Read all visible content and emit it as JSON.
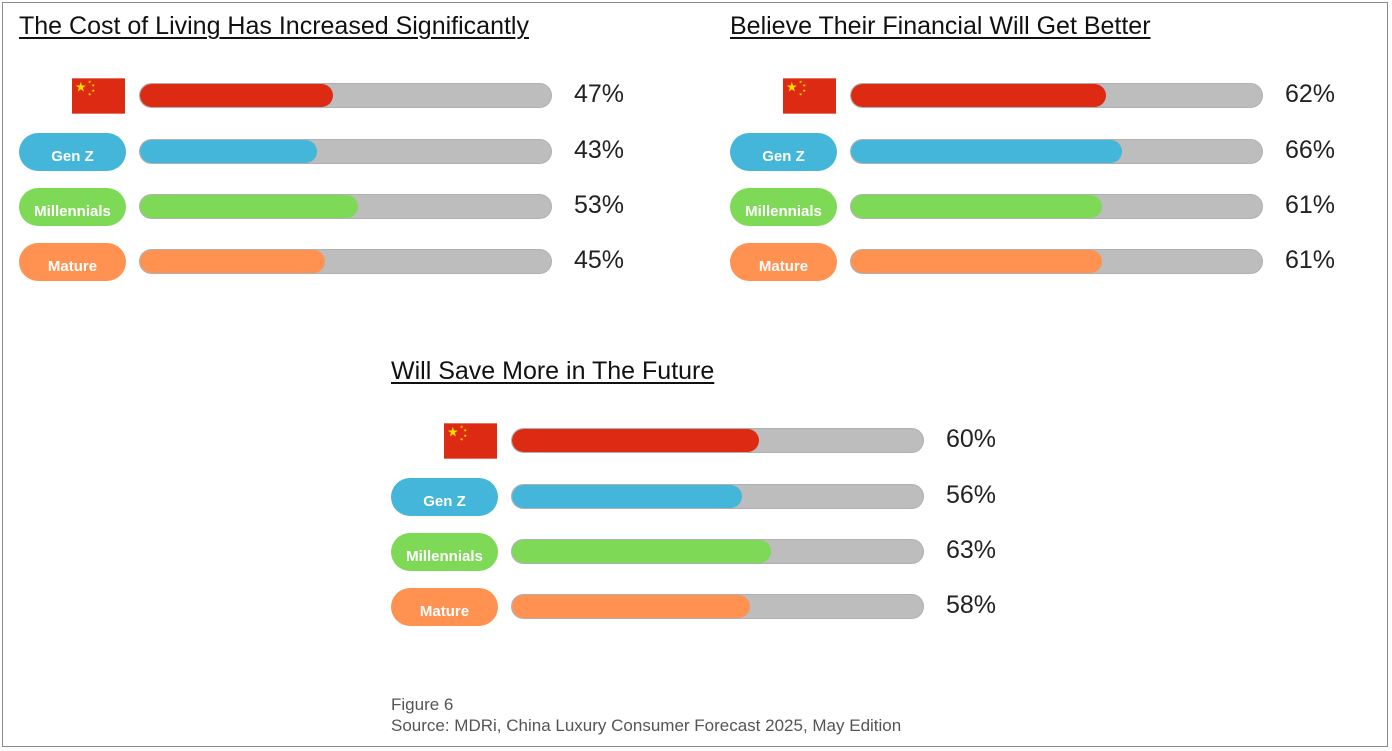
{
  "colors": {
    "china": "#dd2a13",
    "gen_z": "#43b6d9",
    "millennials": "#7ed957",
    "mature": "#ff9151",
    "track": "#bdbdbd",
    "flag_star": "#ffde00"
  },
  "chart_data": [
    {
      "type": "bar",
      "title": "The Cost of Living Has Increased Significantly",
      "categories": [
        "China",
        "Gen Z",
        "Millennials",
        "Mature"
      ],
      "category_labels": [
        "",
        "Gen Z",
        "Millennials",
        "Mature"
      ],
      "values": [
        47,
        43,
        53,
        45
      ],
      "value_labels": [
        "47%",
        "43%",
        "53%",
        "45%"
      ],
      "xlim": [
        0,
        100
      ]
    },
    {
      "type": "bar",
      "title": "Believe Their Financial Will Get Better",
      "categories": [
        "China",
        "Gen Z",
        "Millennials",
        "Mature"
      ],
      "category_labels": [
        "",
        "Gen Z",
        "Millennials",
        "Mature"
      ],
      "values": [
        62,
        66,
        61,
        61
      ],
      "value_labels": [
        "62%",
        "66%",
        "61%",
        "61%"
      ],
      "xlim": [
        0,
        100
      ]
    },
    {
      "type": "bar",
      "title": "Will Save More in The Future",
      "categories": [
        "China",
        "Gen Z",
        "Millennials",
        "Mature"
      ],
      "category_labels": [
        "",
        "Gen Z",
        "Millennials",
        "Mature"
      ],
      "values": [
        60,
        56,
        63,
        58
      ],
      "value_labels": [
        "60%",
        "56%",
        "63%",
        "58%"
      ],
      "xlim": [
        0,
        100
      ]
    }
  ],
  "footnote": {
    "figure": "Figure 6",
    "source": "Source: MDRi, China Luxury Consumer Forecast 2025, May Edition"
  }
}
